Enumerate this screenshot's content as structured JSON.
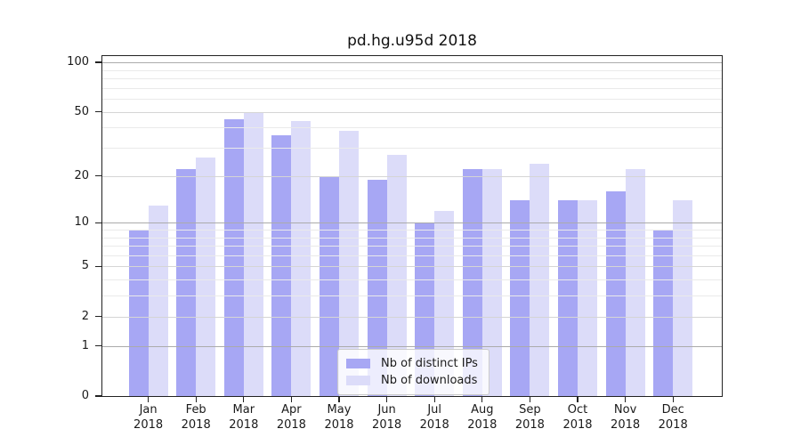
{
  "figure": {
    "title": "pd.hg.u95d 2018"
  },
  "chart_data": {
    "type": "bar",
    "title": "pd.hg.u95d 2018",
    "x": {
      "months": [
        "Jan",
        "Feb",
        "Mar",
        "Apr",
        "May",
        "Jun",
        "Jul",
        "Aug",
        "Sep",
        "Oct",
        "Nov",
        "Dec"
      ],
      "year": "2018"
    },
    "series": [
      {
        "name": "Nb of distinct IPs",
        "color": "#a7a7f4",
        "values": [
          9,
          22,
          45,
          36,
          20,
          19,
          10,
          22,
          14,
          14,
          16,
          9
        ]
      },
      {
        "name": "Nb of downloads",
        "color": "#dcdcf9",
        "values": [
          13,
          26,
          50,
          44,
          38,
          27,
          12,
          22,
          24,
          14,
          22,
          14
        ]
      }
    ],
    "y_scale": "log1p",
    "y_axis_ticks": [
      100,
      50,
      20,
      10,
      5,
      2,
      1,
      0
    ],
    "y_minor_gridlines": [
      3,
      4,
      6,
      7,
      8,
      9,
      30,
      40,
      60,
      70,
      80,
      90
    ],
    "ylim": [
      0,
      111
    ],
    "grid": "on",
    "legend_position": "lower center"
  },
  "colors": {
    "bar_distinct_ips": "#a7a7f4",
    "bar_downloads": "#dcdcf9",
    "grid_decade": "#ababab",
    "grid_labeled": "#d5d5d5",
    "grid_minor": "#eaeaea"
  }
}
